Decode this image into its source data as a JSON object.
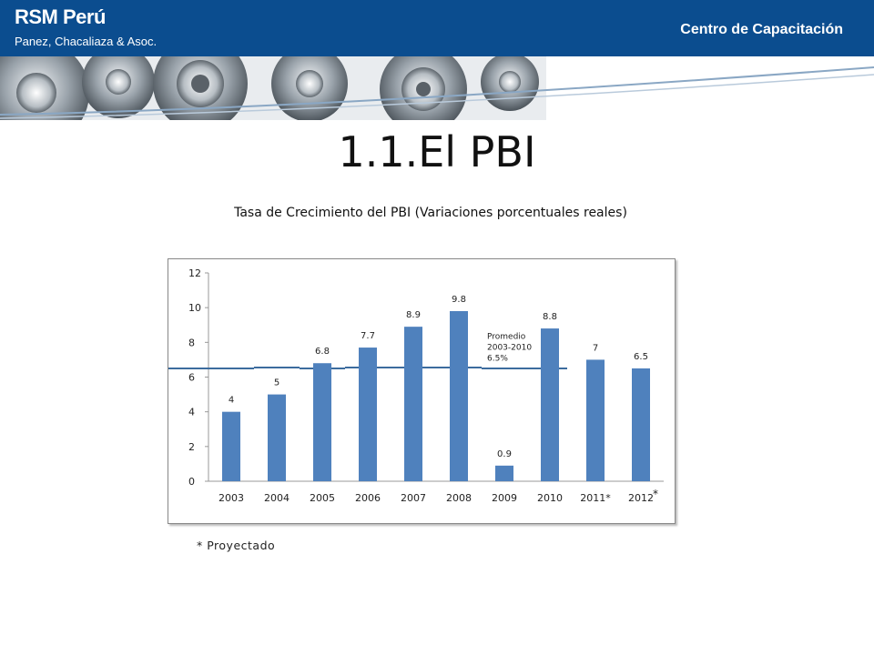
{
  "header": {
    "brand": "RSM Perú",
    "subtitle": "Panez, Chacaliaza & Asoc.",
    "right_label": "Centro de Capacitación"
  },
  "slide": {
    "title": "1.1.El PBI",
    "note": "* Proyectado"
  },
  "colors": {
    "header_bg": "#0b4d8f",
    "bar": "#4f81bd",
    "avg_line": "#3c6c9e"
  },
  "chart_data": {
    "type": "bar",
    "title": "Tasa de Crecimiento del PBI (Variaciones porcentuales reales)",
    "categories": [
      "2003",
      "2004",
      "2005",
      "2006",
      "2007",
      "2008",
      "2009",
      "2010",
      "2011*",
      "2012"
    ],
    "values": [
      4,
      5,
      6.8,
      7.7,
      8.9,
      9.8,
      0.9,
      8.8,
      7,
      6.5
    ],
    "data_labels": [
      "4",
      "5",
      "6.8",
      "7.7",
      "8.9",
      "9.8",
      "0.9",
      "8.8",
      "7",
      "6.5"
    ],
    "yticks": [
      "0",
      "2",
      "4",
      "6",
      "8",
      "10",
      "12"
    ],
    "ylim": [
      0,
      12
    ],
    "average": {
      "value": 6.5,
      "label_lines": [
        "Promedio",
        "2003-2010",
        "6.5%"
      ]
    },
    "last_category_mark": "*",
    "grid": false,
    "legend": "none",
    "xlabel": "",
    "ylabel": ""
  }
}
